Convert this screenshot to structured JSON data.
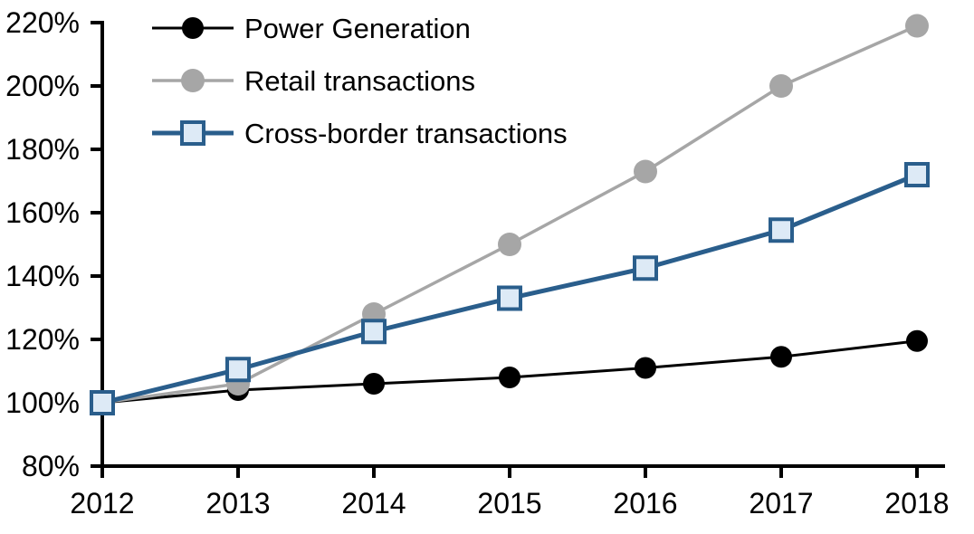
{
  "chart_data": {
    "type": "line",
    "title": "",
    "xlabel": "",
    "ylabel": "",
    "x": [
      "2012",
      "2013",
      "2014",
      "2015",
      "2016",
      "2017",
      "2018"
    ],
    "ylim": [
      80,
      220
    ],
    "ytick_step": 20,
    "ytick_labels": [
      "80%",
      "100%",
      "120%",
      "140%",
      "160%",
      "180%",
      "200%",
      "220%"
    ],
    "grid": false,
    "legend_position": "top-left-inside",
    "axis_color": "#000000",
    "text_color": "#000000",
    "series": [
      {
        "name": "Power Generation",
        "values": [
          100,
          104,
          106,
          108,
          111,
          114.5,
          119.5
        ],
        "color": "#000000",
        "marker": "circle",
        "marker_fill": "#000000",
        "marker_size": 12,
        "line_width": 3
      },
      {
        "name": "Retail transactions",
        "values": [
          100,
          106,
          128,
          150,
          173,
          200,
          219
        ],
        "color": "#A6A6A6",
        "marker": "circle",
        "marker_fill": "#A6A6A6",
        "marker_size": 13,
        "line_width": 3.5
      },
      {
        "name": "Cross-border transactions",
        "values": [
          100,
          110.5,
          122.5,
          133,
          142.5,
          154.5,
          172
        ],
        "color": "#2A5E8C",
        "marker": "square",
        "marker_fill": "#DDEAF6",
        "marker_size": 12,
        "line_width": 5
      }
    ]
  }
}
